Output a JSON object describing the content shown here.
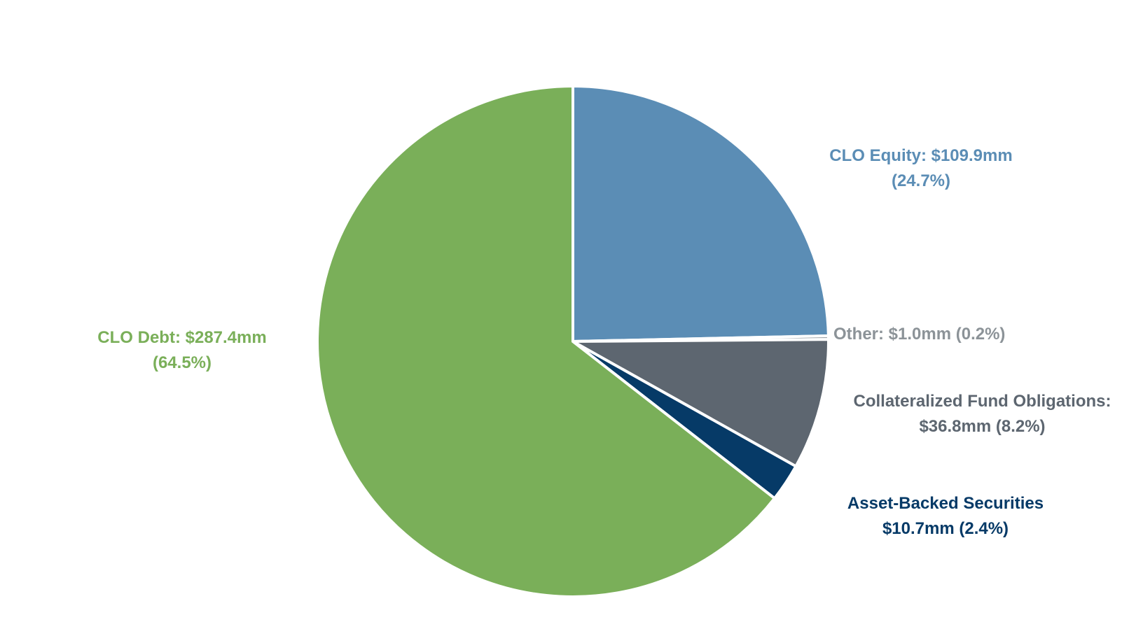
{
  "chart_data": {
    "type": "pie",
    "start_angle_deg": 0,
    "direction": "clockwise",
    "slices": [
      {
        "name": "CLO Equity",
        "value": 109.9,
        "percent": 24.7,
        "color": "#5b8db5",
        "label_lines": [
          "CLO Equity: $109.9mm",
          "(24.7%)"
        ]
      },
      {
        "name": "Other",
        "value": 1.0,
        "percent": 0.2,
        "color": "#8c9398",
        "label_lines": [
          "Other: $1.0mm (0.2%)"
        ]
      },
      {
        "name": "Collateralized Fund Obligations",
        "value": 36.8,
        "percent": 8.2,
        "color": "#5d6670",
        "label_lines": [
          "Collateralized Fund Obligations:",
          "$36.8mm (8.2%)"
        ]
      },
      {
        "name": "Asset-Backed Securities",
        "value": 10.7,
        "percent": 2.4,
        "color": "#063a67",
        "label_lines": [
          "Asset-Backed Securities",
          "$10.7mm (2.4%)"
        ]
      },
      {
        "name": "CLO Debt",
        "value": 287.4,
        "percent": 64.5,
        "color": "#7aaf59",
        "label_lines": [
          "CLO Debt: $287.4mm",
          "(64.5%)"
        ]
      }
    ]
  }
}
